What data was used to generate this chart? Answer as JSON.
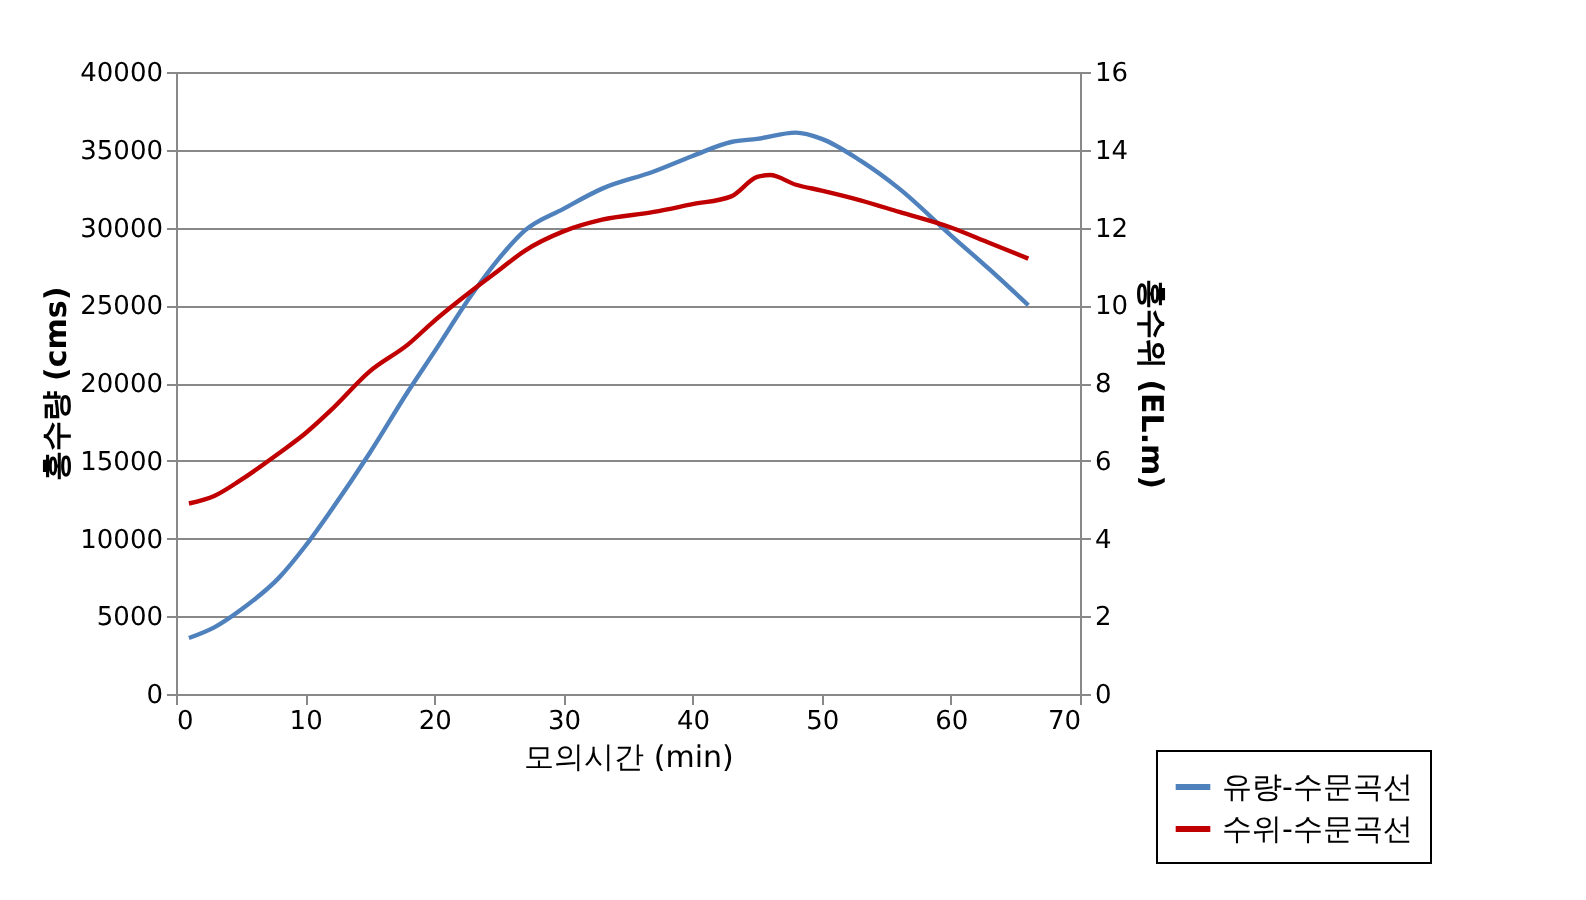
{
  "chart_data": {
    "type": "line",
    "xlabel": "모의시간 (min)",
    "ylabel": "홍수량 (cms)",
    "y2label": "홍수위 (EL.m)",
    "xlim": [
      0,
      70
    ],
    "xticks": [
      0,
      10,
      20,
      30,
      40,
      50,
      60,
      70
    ],
    "ylim": [
      0,
      40000
    ],
    "yticks": [
      0,
      5000,
      10000,
      15000,
      20000,
      25000,
      30000,
      35000,
      40000
    ],
    "y2lim": [
      0,
      16
    ],
    "y2ticks": [
      0,
      2,
      4,
      6,
      8,
      10,
      12,
      14,
      16
    ],
    "grid": "y",
    "legend": "bottom right",
    "marker": "none",
    "line_style": "solid",
    "series": [
      {
        "name": "유량-수문곡선",
        "color": "#4f81bd",
        "axis": "y",
        "x": [
          1,
          3,
          5,
          8,
          10,
          12,
          15,
          18,
          20,
          23,
          25,
          27,
          30,
          33,
          37,
          40,
          43,
          45,
          48,
          50,
          53,
          56,
          60,
          63,
          66
        ],
        "values": [
          3600,
          4300,
          5400,
          7500,
          9500,
          11800,
          15500,
          19500,
          22000,
          25800,
          28000,
          29800,
          31200,
          32500,
          33600,
          34600,
          35500,
          35700,
          36100,
          35700,
          34300,
          32500,
          29500,
          27300,
          25000
        ]
      },
      {
        "name": "수위-수문곡선",
        "color": "#c00000",
        "axis": "y2",
        "x": [
          1,
          3,
          5,
          8,
          10,
          12,
          15,
          18,
          20,
          23,
          25,
          27,
          30,
          33,
          37,
          40,
          43,
          45,
          46,
          48,
          50,
          53,
          56,
          60,
          63,
          66
        ],
        "values": [
          4.9,
          5.1,
          5.5,
          6.2,
          6.7,
          7.3,
          8.3,
          9.0,
          9.6,
          10.4,
          10.9,
          11.4,
          11.9,
          12.2,
          12.4,
          12.6,
          12.8,
          13.3,
          13.35,
          13.1,
          12.95,
          12.7,
          12.4,
          12.0,
          11.6,
          11.2
        ]
      }
    ]
  }
}
